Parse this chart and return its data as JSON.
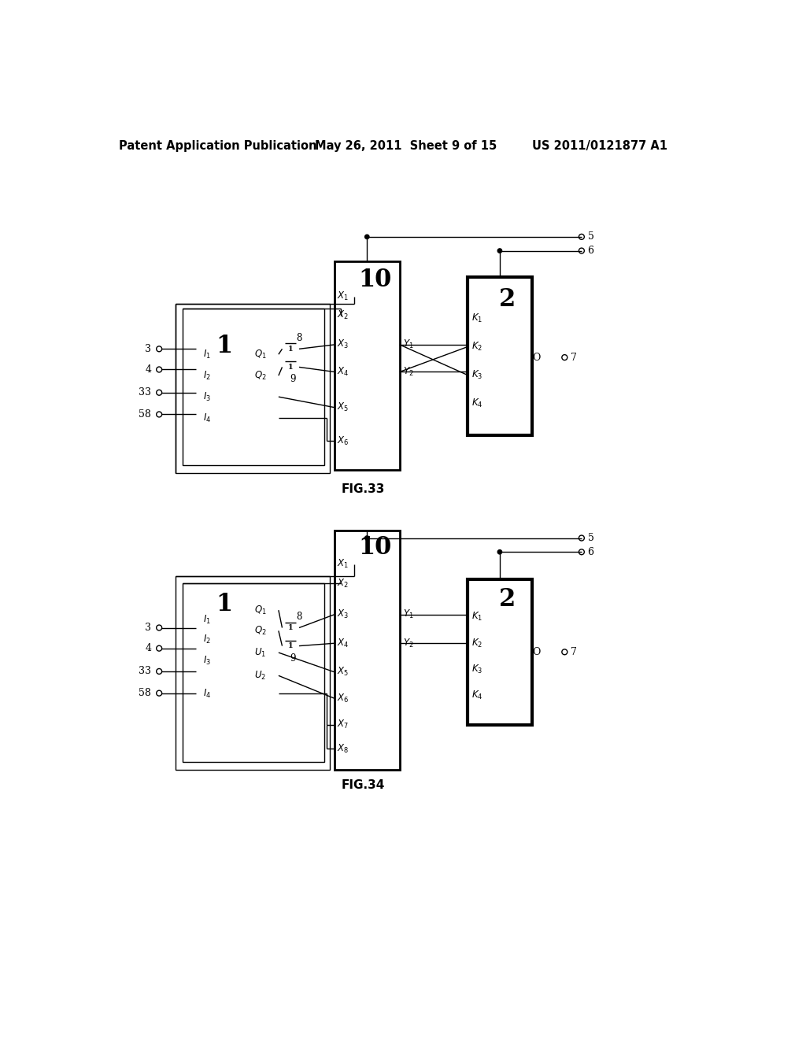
{
  "background_color": "#ffffff",
  "header_left": "Patent Application Publication",
  "header_center": "May 26, 2011  Sheet 9 of 15",
  "header_right": "US 2011/0121877 A1",
  "fig33_label": "FIG.33",
  "fig34_label": "FIG.34"
}
